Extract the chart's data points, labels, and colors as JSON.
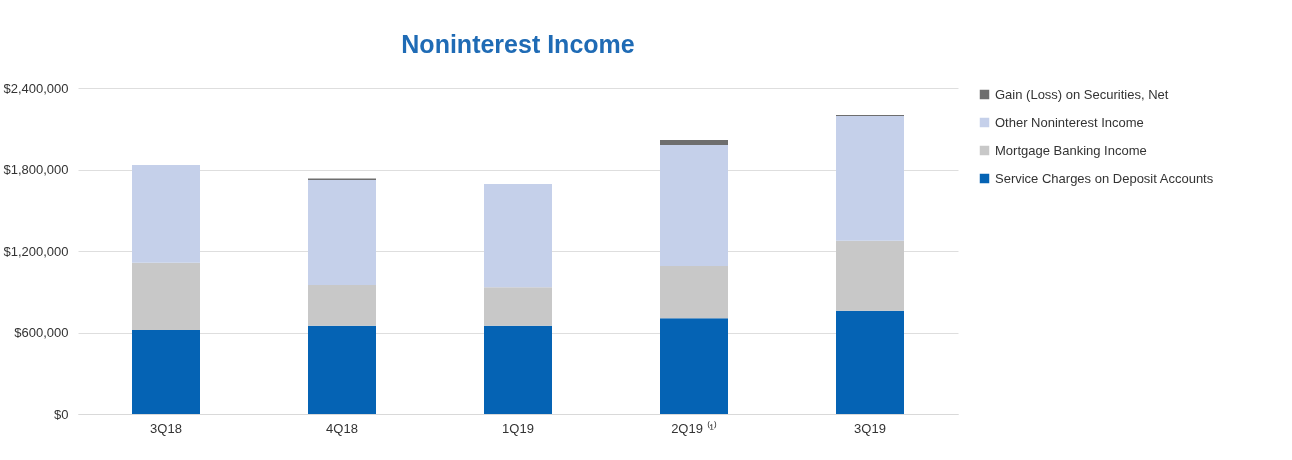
{
  "chart_data": {
    "type": "bar",
    "title": "Noninterest Income",
    "stacked": true,
    "categories": [
      "3Q18",
      "4Q18",
      "1Q19",
      "2Q19 ⁽¹⁾",
      "3Q19"
    ],
    "series": [
      {
        "name": "Service Charges on Deposit Accounts",
        "color": "#0563b4",
        "values": [
          618000,
          650000,
          650000,
          704000,
          761000
        ]
      },
      {
        "name": "Mortgage Banking Income",
        "color": "#c8c8c8",
        "values": [
          496000,
          300000,
          283000,
          386000,
          515000
        ]
      },
      {
        "name": "Other Noninterest Income",
        "color": "#c5d0ea",
        "values": [
          719000,
          773000,
          760000,
          890000,
          918000
        ]
      },
      {
        "name": "Gain (Loss) on Securities, Net",
        "color": "#6e6e6e",
        "values": [
          null,
          10000,
          null,
          37000,
          8000
        ]
      }
    ],
    "ylim": [
      0,
      2400000
    ],
    "yticks": [
      {
        "value": 0,
        "label": "$0"
      },
      {
        "value": 600000,
        "label": "$600,000"
      },
      {
        "value": 1200000,
        "label": "$1,200,000"
      },
      {
        "value": 1800000,
        "label": "$1,800,000"
      },
      {
        "value": 2400000,
        "label": "$2,400,000"
      }
    ],
    "grid": "y",
    "legend": "right"
  }
}
